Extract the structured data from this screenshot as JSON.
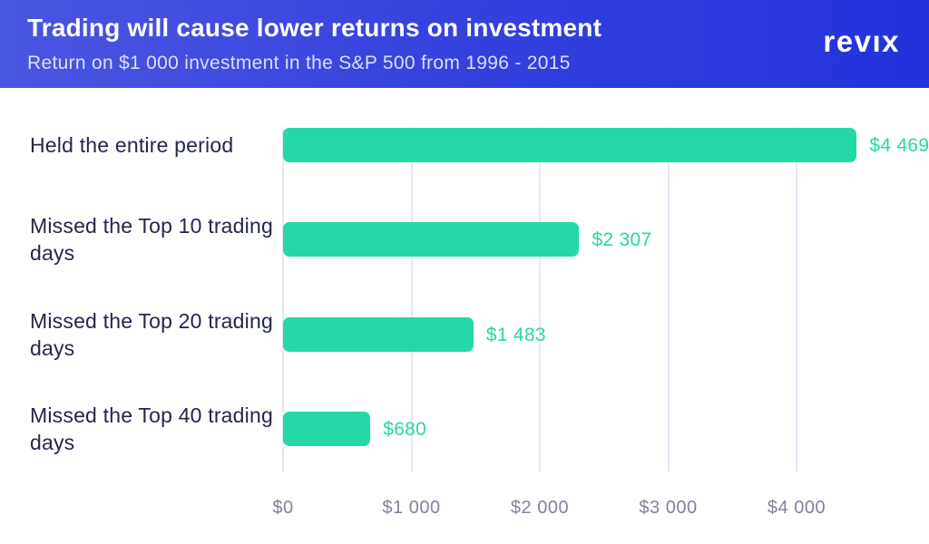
{
  "header": {
    "title": "Trading will cause lower returns on investment",
    "subtitle": "Return on $1 000 investment in the S&P 500 from 1996 - 2015",
    "logo": "revıx"
  },
  "colors": {
    "header_gradient_left": "#4a56e1",
    "header_gradient_right": "#2232dc",
    "bar": "#25d8a7",
    "value_label": "#25d8a7",
    "category_label": "#24264e",
    "axis_label": "#81839e",
    "gridline": "#e8e6f6",
    "background": "#ffffff"
  },
  "chart_data": {
    "type": "bar",
    "orientation": "horizontal",
    "title": "Trading will cause lower returns on investment",
    "subtitle": "Return on $1 000 investment in the S&P 500 from 1996 - 2015",
    "categories": [
      "Held the entire period",
      "Missed the Top 10 trading days",
      "Missed the Top 20 trading days",
      "Missed the Top 40 trading days"
    ],
    "values": [
      4469,
      2307,
      1483,
      680
    ],
    "value_labels": [
      "$4 469",
      "$2 307",
      "$1 483",
      "$680"
    ],
    "x_ticks": [
      0,
      1000,
      2000,
      3000,
      4000
    ],
    "x_tick_labels": [
      "$0",
      "$1 000",
      "$2 000",
      "$3 000",
      "$4 000"
    ],
    "xlim": [
      0,
      4900
    ],
    "grid": "vertical",
    "legend": "none"
  }
}
